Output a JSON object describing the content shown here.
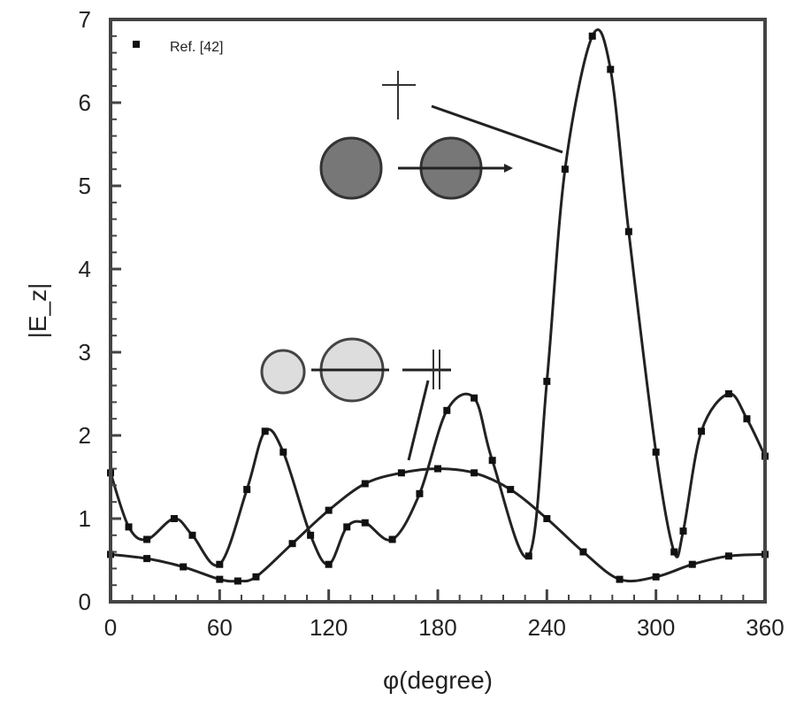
{
  "chart_data": {
    "type": "line",
    "title": "",
    "xlabel": "φ(degree)",
    "ylabel": "|E_z|",
    "xlim": [
      0,
      360
    ],
    "ylim": [
      0,
      7
    ],
    "xticks": [
      "0",
      "60",
      "120",
      "180",
      "240",
      "300",
      "360"
    ],
    "yticks": [
      "0",
      "1",
      "2",
      "3",
      "4",
      "5",
      "6",
      "7"
    ],
    "grid": false,
    "legend": {
      "label": "Ref. [42]",
      "placement": "top-left"
    },
    "series": [
      {
        "x": [
          0,
          10,
          20,
          35,
          45,
          60,
          75,
          85,
          95,
          110,
          120,
          130,
          140,
          155,
          170,
          185,
          200,
          210,
          230,
          240,
          250,
          265,
          275,
          285,
          300,
          310,
          315,
          325,
          340,
          350,
          360
        ],
        "y": [
          1.55,
          0.9,
          0.75,
          1.0,
          0.8,
          0.45,
          1.35,
          2.05,
          1.8,
          0.8,
          0.45,
          0.9,
          0.95,
          0.75,
          1.3,
          2.3,
          2.45,
          1.7,
          0.55,
          2.65,
          5.2,
          6.8,
          6.4,
          4.45,
          1.8,
          0.6,
          0.85,
          2.05,
          2.5,
          2.2,
          1.75
        ]
      },
      {
        "x": [
          0,
          20,
          40,
          60,
          70,
          80,
          100,
          120,
          140,
          160,
          180,
          200,
          220,
          240,
          260,
          280,
          300,
          320,
          340,
          360
        ],
        "y": [
          0.57,
          0.52,
          0.42,
          0.27,
          0.25,
          0.3,
          0.7,
          1.1,
          1.42,
          1.55,
          1.6,
          1.55,
          1.35,
          1.0,
          0.6,
          0.27,
          0.3,
          0.45,
          0.55,
          0.57
        ]
      }
    ]
  }
}
